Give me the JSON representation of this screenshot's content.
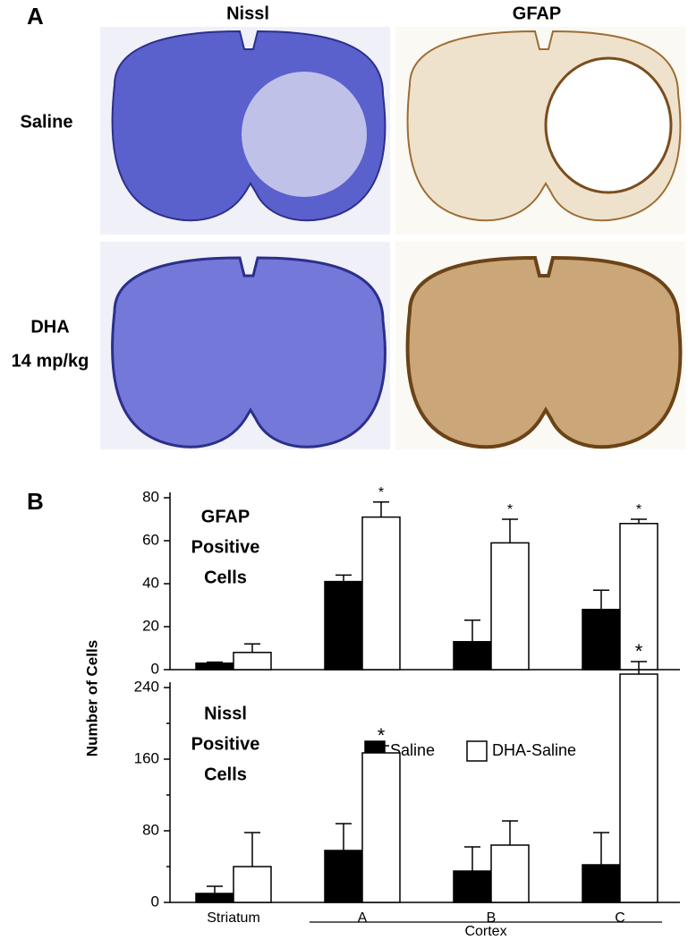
{
  "panel_a": {
    "label": "A",
    "columns": [
      "Nissl",
      "GFAP"
    ],
    "rows": [
      [
        "Saline"
      ],
      [
        "DHA",
        "14 mp/kg"
      ]
    ]
  },
  "panel_b": {
    "label": "B",
    "y_label": "Number of Cells"
  },
  "chart_data": [
    {
      "type": "bar",
      "title": [
        "GFAP",
        "Positive",
        "Cells"
      ],
      "series": [
        {
          "color": "#000000",
          "values": [
            3,
            41,
            13,
            28
          ],
          "error": [
            0.5,
            3,
            10,
            9
          ]
        },
        {
          "color": "#ffffff",
          "values": [
            8,
            71,
            59,
            68
          ],
          "error": [
            4,
            7,
            11,
            2
          ],
          "annotations": [
            null,
            "*",
            "*",
            "*"
          ]
        }
      ],
      "ylim": [
        0,
        80
      ],
      "yticks": [
        0,
        20,
        40,
        60,
        80
      ]
    },
    {
      "type": "bar",
      "title": [
        "Nissl",
        "Positive",
        "Cells"
      ],
      "categories": [
        "Striatum",
        "A",
        "B",
        "C"
      ],
      "group": {
        "label": "Cortex"
      },
      "series": [
        {
          "name": "Saline",
          "color": "#000000",
          "values": [
            10,
            58,
            35,
            42
          ],
          "error": [
            8,
            30,
            27,
            36
          ]
        },
        {
          "name": "DHA-Saline",
          "color": "#ffffff",
          "values": [
            40,
            167,
            64,
            255
          ],
          "error": [
            38,
            8,
            27,
            14
          ],
          "annotations": [
            null,
            "*",
            null,
            "*"
          ]
        }
      ],
      "ylim": [
        0,
        260
      ],
      "yticks": [
        0,
        80,
        160,
        240
      ],
      "yminorticks": [
        40,
        120,
        200
      ]
    }
  ]
}
